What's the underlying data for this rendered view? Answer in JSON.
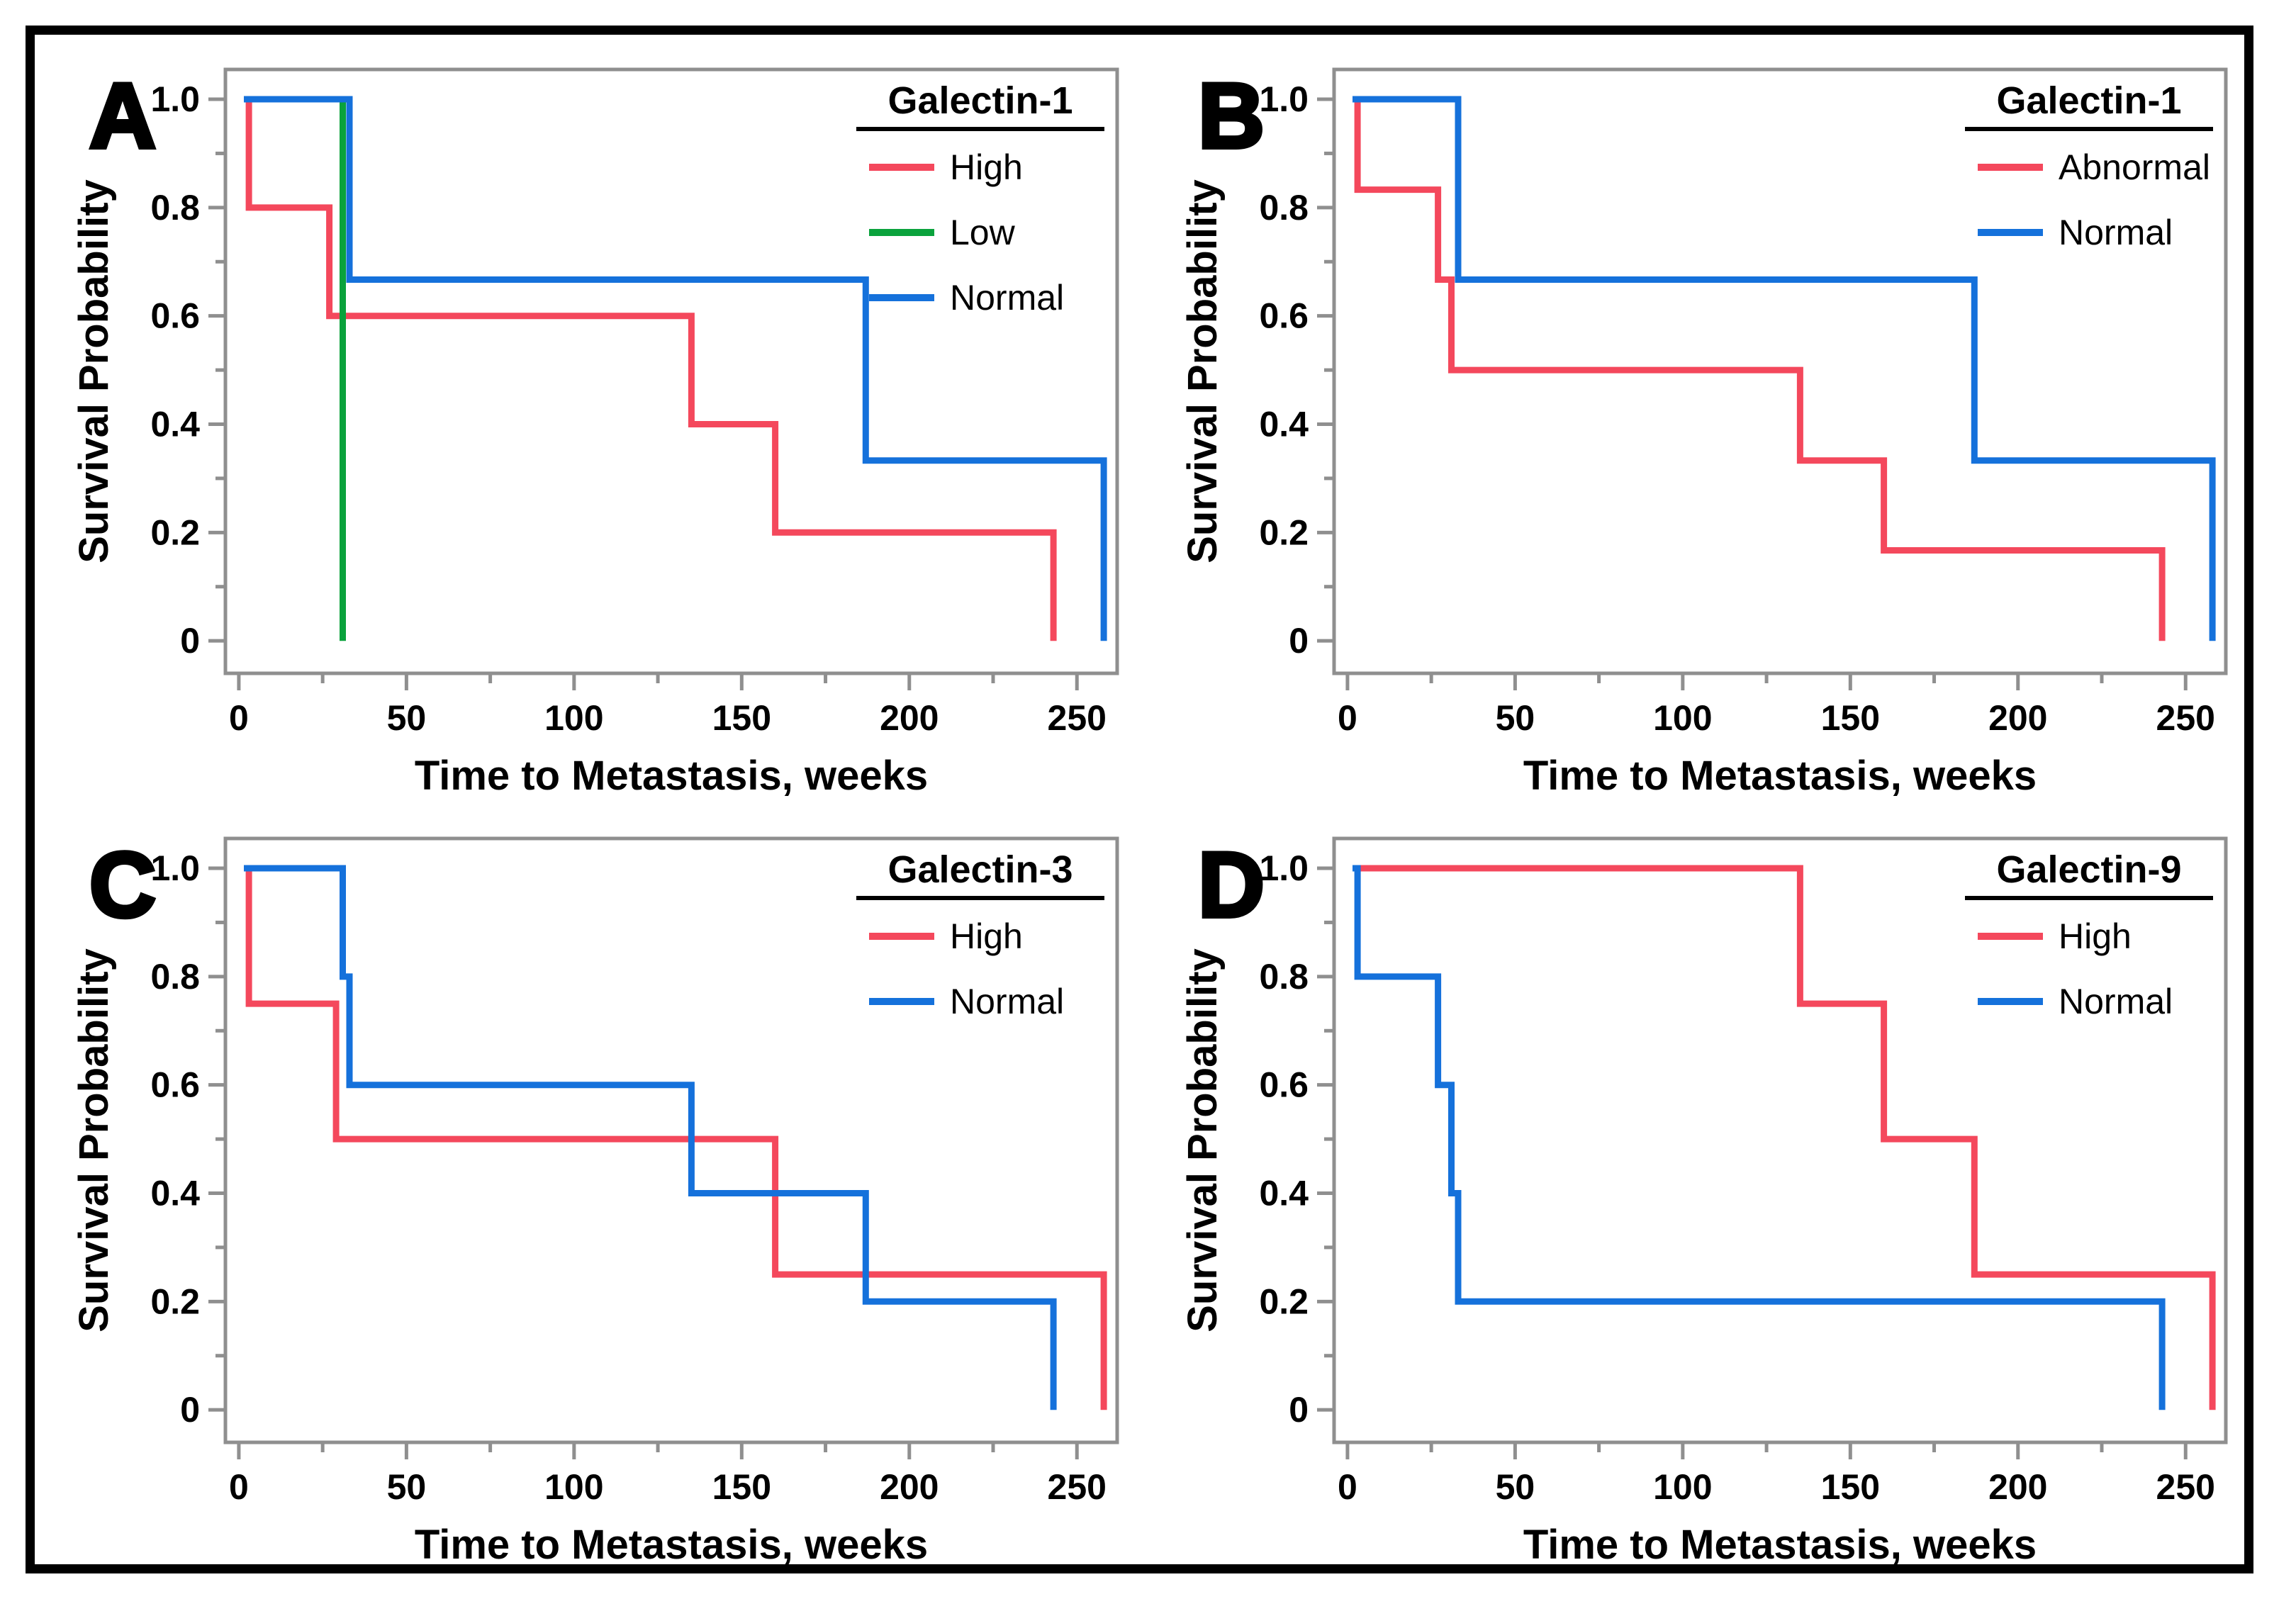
{
  "figure": {
    "description": "Four-panel Kaplan-Meier survival figure",
    "background": "#FFFFFF",
    "frame_color": "#000000"
  },
  "colors": {
    "red": "#F4485C",
    "green": "#0AA23C",
    "blue": "#1571DB",
    "axis": "#8F8F8F",
    "text": "#000000"
  },
  "axes": {
    "x_label": "Time to Metastasis, weeks",
    "y_label": "Survival Probability",
    "x_major_ticks": [
      0,
      50,
      100,
      150,
      200,
      250
    ],
    "x_minor_ticks": [
      25,
      75,
      125,
      175,
      225
    ],
    "y_major_ticks": [
      {
        "v": 1.0,
        "label": "1.0"
      },
      {
        "v": 0.8,
        "label": "0.8"
      },
      {
        "v": 0.6,
        "label": "0.6"
      },
      {
        "v": 0.4,
        "label": "0.4"
      },
      {
        "v": 0.2,
        "label": "0.2"
      },
      {
        "v": 0.0,
        "label": "0"
      }
    ],
    "y_minor_ticks": [
      0.9,
      0.7,
      0.5,
      0.3,
      0.1
    ]
  },
  "chart_data": [
    {
      "type": "line",
      "subtype": "kaplan-meier-step",
      "panel_label": "A",
      "legend_title": "Galectin-1",
      "legend_position": "top-right",
      "xlabel": "Time to Metastasis, weeks",
      "ylabel": "Survival Probability",
      "xlim": [
        0,
        260
      ],
      "ylim": [
        0,
        1.0
      ],
      "series": [
        {
          "name": "High",
          "color_key": "red",
          "start_x": 1.5,
          "start_y": 1.0,
          "drops": [
            [
              3,
              0.8
            ],
            [
              27,
              0.6
            ],
            [
              135,
              0.4
            ],
            [
              160,
              0.2
            ],
            [
              243,
              0
            ]
          ]
        },
        {
          "name": "Low",
          "color_key": "green",
          "start_x": 1.5,
          "start_y": 1.0,
          "drops": [
            [
              31,
              0
            ]
          ]
        },
        {
          "name": "Normal",
          "color_key": "blue",
          "start_x": 1.5,
          "start_y": 1.0,
          "drops": [
            [
              33,
              0.667
            ],
            [
              187,
              0.333
            ],
            [
              258,
              0
            ]
          ]
        }
      ]
    },
    {
      "type": "line",
      "subtype": "kaplan-meier-step",
      "panel_label": "B",
      "legend_title": "Galectin-1",
      "legend_position": "top-right",
      "xlabel": "Time to Metastasis, weeks",
      "ylabel": "Survival Probability",
      "xlim": [
        0,
        260
      ],
      "ylim": [
        0,
        1.0
      ],
      "series": [
        {
          "name": "Abnormal",
          "color_key": "red",
          "start_x": 1.5,
          "start_y": 1.0,
          "drops": [
            [
              3,
              0.833
            ],
            [
              27,
              0.667
            ],
            [
              31,
              0.5
            ],
            [
              135,
              0.333
            ],
            [
              160,
              0.167
            ],
            [
              243,
              0
            ]
          ]
        },
        {
          "name": "Normal",
          "color_key": "blue",
          "start_x": 1.5,
          "start_y": 1.0,
          "drops": [
            [
              33,
              0.667
            ],
            [
              187,
              0.333
            ],
            [
              258,
              0
            ]
          ]
        }
      ]
    },
    {
      "type": "line",
      "subtype": "kaplan-meier-step",
      "panel_label": "C",
      "legend_title": "Galectin-3",
      "legend_position": "top-right",
      "xlabel": "Time to Metastasis, weeks",
      "ylabel": "Survival Probability",
      "xlim": [
        0,
        260
      ],
      "ylim": [
        0,
        1.0
      ],
      "series": [
        {
          "name": "High",
          "color_key": "red",
          "start_x": 1.5,
          "start_y": 1.0,
          "drops": [
            [
              3,
              0.75
            ],
            [
              29,
              0.5
            ],
            [
              160,
              0.25
            ],
            [
              258,
              0
            ]
          ]
        },
        {
          "name": "Normal",
          "color_key": "blue",
          "start_x": 1.5,
          "start_y": 1.0,
          "drops": [
            [
              31,
              0.8
            ],
            [
              33,
              0.6
            ],
            [
              135,
              0.4
            ],
            [
              187,
              0.2
            ],
            [
              243,
              0
            ]
          ]
        }
      ]
    },
    {
      "type": "line",
      "subtype": "kaplan-meier-step",
      "panel_label": "D",
      "legend_title": "Galectin-9",
      "legend_position": "top-right",
      "xlabel": "Time to Metastasis, weeks",
      "ylabel": "Survival Probability",
      "xlim": [
        0,
        260
      ],
      "ylim": [
        0,
        1.0
      ],
      "series": [
        {
          "name": "High",
          "color_key": "red",
          "start_x": 1.5,
          "start_y": 1.0,
          "drops": [
            [
              135,
              0.75
            ],
            [
              160,
              0.5
            ],
            [
              187,
              0.25
            ],
            [
              258,
              0
            ]
          ]
        },
        {
          "name": "Normal",
          "color_key": "blue",
          "start_x": 1.5,
          "start_y": 1.0,
          "drops": [
            [
              3,
              0.8
            ],
            [
              27,
              0.6
            ],
            [
              31,
              0.4
            ],
            [
              33,
              0.2
            ],
            [
              243,
              0
            ]
          ]
        }
      ]
    }
  ]
}
